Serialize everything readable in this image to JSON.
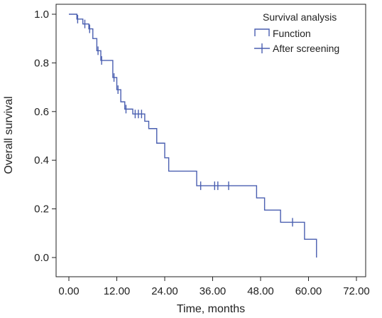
{
  "chart_data": {
    "type": "line",
    "subtype": "kaplan-meier",
    "title": "",
    "xlabel": "Time, months",
    "ylabel": "Overall survival",
    "xlim": [
      0,
      72
    ],
    "ylim": [
      0,
      1.0
    ],
    "x_ticks": [
      "0.00",
      "12.00",
      "24.00",
      "36.00",
      "48.00",
      "60.00",
      "72.00"
    ],
    "y_ticks": [
      "0.0",
      "0.2",
      "0.4",
      "0.6",
      "0.8",
      "1.0"
    ],
    "grid": false,
    "legend": {
      "title": "Survival analysis",
      "placement": "top-right",
      "entries": [
        {
          "label": "Function",
          "symbol": "step"
        },
        {
          "label": "After screening",
          "symbol": "plus"
        }
      ]
    },
    "color": "#4a5fb0",
    "series": [
      {
        "name": "Function",
        "steps": [
          [
            0,
            1.0
          ],
          [
            2,
            0.98
          ],
          [
            3.5,
            0.96
          ],
          [
            5,
            0.94
          ],
          [
            6,
            0.9
          ],
          [
            7,
            0.85
          ],
          [
            8,
            0.81
          ],
          [
            11,
            0.74
          ],
          [
            12,
            0.69
          ],
          [
            13,
            0.64
          ],
          [
            14,
            0.61
          ],
          [
            16,
            0.59
          ],
          [
            19,
            0.56
          ],
          [
            20,
            0.53
          ],
          [
            22,
            0.47
          ],
          [
            24,
            0.41
          ],
          [
            25,
            0.355
          ],
          [
            32,
            0.295
          ],
          [
            47,
            0.245
          ],
          [
            49,
            0.195
          ],
          [
            53,
            0.145
          ],
          [
            59,
            0.075
          ],
          [
            62,
            0.0
          ]
        ]
      },
      {
        "name": "After screening",
        "points": [
          [
            2.2,
            0.98
          ],
          [
            4,
            0.96
          ],
          [
            5.2,
            0.94
          ],
          [
            7.3,
            0.85
          ],
          [
            8.2,
            0.81
          ],
          [
            11.3,
            0.74
          ],
          [
            12.3,
            0.69
          ],
          [
            14.3,
            0.61
          ],
          [
            16.6,
            0.59
          ],
          [
            17.4,
            0.59
          ],
          [
            18.2,
            0.59
          ],
          [
            33,
            0.295
          ],
          [
            36.5,
            0.295
          ],
          [
            37.3,
            0.295
          ],
          [
            40,
            0.295
          ],
          [
            56,
            0.145
          ]
        ]
      }
    ]
  }
}
